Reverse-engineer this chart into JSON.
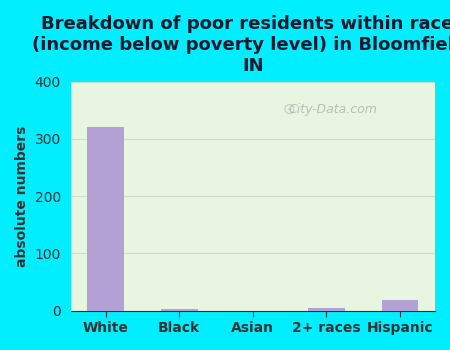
{
  "title": "Breakdown of poor residents within races\n(income below poverty level) in Bloomfield,\nIN",
  "categories": [
    "White",
    "Black",
    "Asian",
    "2+ races",
    "Hispanic"
  ],
  "values": [
    320,
    2,
    0,
    5,
    18
  ],
  "bar_color": "#b3a0d4",
  "ylabel": "absolute numbers",
  "ylim": [
    0,
    400
  ],
  "yticks": [
    0,
    100,
    200,
    300,
    400
  ],
  "background_outer": "#00eeff",
  "background_plot_top": "#e8f5e0",
  "background_plot_bottom": "#f0fae8",
  "grid_color": "#ccddcc",
  "title_color": "#1a1a2e",
  "axis_color": "#333333",
  "watermark": "City-Data.com",
  "title_fontsize": 13,
  "label_fontsize": 10,
  "tick_fontsize": 10
}
